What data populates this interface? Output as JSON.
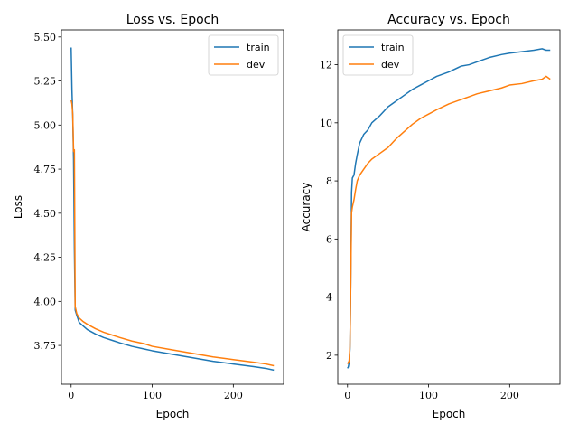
{
  "chart_data": [
    {
      "type": "line",
      "title": "Loss vs. Epoch",
      "xlabel": "Epoch",
      "ylabel": "Loss",
      "xlim": [
        -12,
        262
      ],
      "ylim": [
        3.53,
        5.54
      ],
      "xticks": [
        0,
        100,
        200
      ],
      "yticks": [
        3.75,
        4.0,
        4.25,
        4.5,
        4.75,
        5.0,
        5.25,
        5.5
      ],
      "ytick_labels": [
        "3.75",
        "4.00",
        "4.25",
        "4.50",
        "4.75",
        "5.00",
        "5.25",
        "5.50"
      ],
      "legend": "top-right",
      "grid": false,
      "series": [
        {
          "name": "train",
          "color": "#1f77b4",
          "points": [
            [
              0,
              5.44
            ],
            [
              1,
              5.2
            ],
            [
              2,
              5.05
            ],
            [
              3,
              4.8
            ],
            [
              4,
              4.3
            ],
            [
              5,
              3.95
            ],
            [
              7,
              3.92
            ],
            [
              10,
              3.88
            ],
            [
              15,
              3.86
            ],
            [
              20,
              3.84
            ],
            [
              30,
              3.815
            ],
            [
              40,
              3.795
            ],
            [
              50,
              3.78
            ],
            [
              60,
              3.765
            ],
            [
              75,
              3.745
            ],
            [
              90,
              3.73
            ],
            [
              100,
              3.72
            ],
            [
              125,
              3.7
            ],
            [
              150,
              3.68
            ],
            [
              175,
              3.66
            ],
            [
              200,
              3.645
            ],
            [
              225,
              3.63
            ],
            [
              240,
              3.62
            ],
            [
              250,
              3.61
            ]
          ]
        },
        {
          "name": "dev",
          "color": "#ff7f0e",
          "points": [
            [
              0,
              5.14
            ],
            [
              1,
              5.12
            ],
            [
              2,
              5.06
            ],
            [
              3,
              4.85
            ],
            [
              4,
              4.86
            ],
            [
              5,
              3.97
            ],
            [
              7,
              3.93
            ],
            [
              10,
              3.905
            ],
            [
              15,
              3.885
            ],
            [
              20,
              3.87
            ],
            [
              30,
              3.845
            ],
            [
              40,
              3.825
            ],
            [
              50,
              3.81
            ],
            [
              60,
              3.795
            ],
            [
              75,
              3.775
            ],
            [
              90,
              3.76
            ],
            [
              100,
              3.745
            ],
            [
              125,
              3.725
            ],
            [
              150,
              3.705
            ],
            [
              175,
              3.685
            ],
            [
              200,
              3.67
            ],
            [
              225,
              3.655
            ],
            [
              240,
              3.645
            ],
            [
              250,
              3.635
            ]
          ]
        }
      ]
    },
    {
      "type": "line",
      "title": "Accuracy vs. Epoch",
      "xlabel": "Epoch",
      "ylabel": "Accuracy",
      "xlim": [
        -12,
        262
      ],
      "ylim": [
        1.0,
        13.2
      ],
      "xticks": [
        0,
        100,
        200
      ],
      "yticks": [
        2,
        4,
        6,
        8,
        10,
        12
      ],
      "ytick_labels": [
        "2",
        "4",
        "6",
        "8",
        "10",
        "12"
      ],
      "legend": "top-left",
      "grid": false,
      "series": [
        {
          "name": "train",
          "color": "#1f77b4",
          "points": [
            [
              0,
              1.55
            ],
            [
              1,
              1.6
            ],
            [
              2,
              1.75
            ],
            [
              3,
              2.2
            ],
            [
              4,
              4.5
            ],
            [
              5,
              7.6
            ],
            [
              6,
              8.1
            ],
            [
              8,
              8.2
            ],
            [
              10,
              8.6
            ],
            [
              12,
              8.9
            ],
            [
              15,
              9.3
            ],
            [
              20,
              9.6
            ],
            [
              25,
              9.75
            ],
            [
              30,
              10.0
            ],
            [
              40,
              10.25
            ],
            [
              50,
              10.55
            ],
            [
              60,
              10.75
            ],
            [
              70,
              10.95
            ],
            [
              80,
              11.15
            ],
            [
              90,
              11.3
            ],
            [
              100,
              11.45
            ],
            [
              110,
              11.6
            ],
            [
              125,
              11.75
            ],
            [
              140,
              11.95
            ],
            [
              150,
              12.0
            ],
            [
              160,
              12.1
            ],
            [
              175,
              12.25
            ],
            [
              190,
              12.35
            ],
            [
              200,
              12.4
            ],
            [
              215,
              12.45
            ],
            [
              230,
              12.5
            ],
            [
              240,
              12.55
            ],
            [
              245,
              12.5
            ],
            [
              250,
              12.5
            ]
          ]
        },
        {
          "name": "dev",
          "color": "#ff7f0e",
          "points": [
            [
              0,
              1.7
            ],
            [
              1,
              1.75
            ],
            [
              2,
              1.8
            ],
            [
              3,
              2.3
            ],
            [
              4,
              4.4
            ],
            [
              5,
              6.9
            ],
            [
              6,
              7.1
            ],
            [
              8,
              7.35
            ],
            [
              10,
              7.7
            ],
            [
              12,
              8.0
            ],
            [
              15,
              8.2
            ],
            [
              20,
              8.4
            ],
            [
              25,
              8.6
            ],
            [
              30,
              8.75
            ],
            [
              40,
              8.95
            ],
            [
              50,
              9.15
            ],
            [
              60,
              9.45
            ],
            [
              70,
              9.7
            ],
            [
              80,
              9.95
            ],
            [
              90,
              10.15
            ],
            [
              100,
              10.3
            ],
            [
              110,
              10.45
            ],
            [
              125,
              10.65
            ],
            [
              140,
              10.8
            ],
            [
              150,
              10.9
            ],
            [
              160,
              11.0
            ],
            [
              175,
              11.1
            ],
            [
              190,
              11.2
            ],
            [
              200,
              11.3
            ],
            [
              215,
              11.35
            ],
            [
              230,
              11.45
            ],
            [
              240,
              11.5
            ],
            [
              245,
              11.6
            ],
            [
              250,
              11.5
            ]
          ]
        }
      ]
    }
  ]
}
